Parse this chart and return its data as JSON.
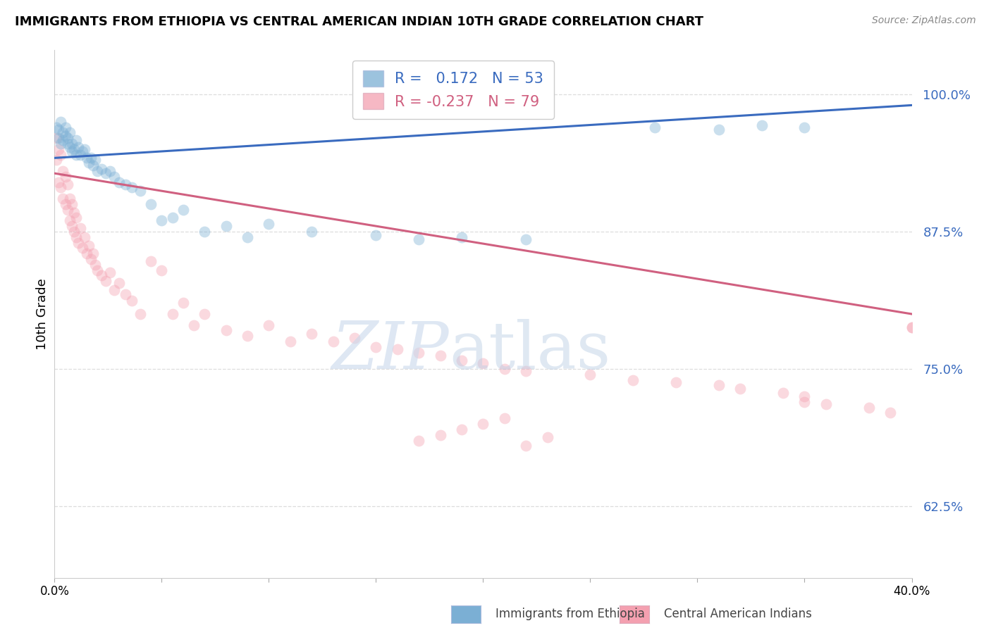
{
  "title": "IMMIGRANTS FROM ETHIOPIA VS CENTRAL AMERICAN INDIAN 10TH GRADE CORRELATION CHART",
  "source": "Source: ZipAtlas.com",
  "ylabel": "10th Grade",
  "ytick_labels": [
    "62.5%",
    "75.0%",
    "87.5%",
    "100.0%"
  ],
  "ytick_values": [
    0.625,
    0.75,
    0.875,
    1.0
  ],
  "xlim": [
    0.0,
    0.4
  ],
  "ylim": [
    0.56,
    1.04
  ],
  "legend_line1": "R =   0.172   N = 53",
  "legend_line2": "R = -0.237   N = 79",
  "blue_scatter_x": [
    0.001,
    0.002,
    0.002,
    0.003,
    0.003,
    0.004,
    0.004,
    0.005,
    0.005,
    0.006,
    0.006,
    0.007,
    0.007,
    0.008,
    0.008,
    0.009,
    0.01,
    0.01,
    0.011,
    0.012,
    0.013,
    0.014,
    0.015,
    0.016,
    0.017,
    0.018,
    0.019,
    0.02,
    0.022,
    0.024,
    0.026,
    0.028,
    0.03,
    0.033,
    0.036,
    0.04,
    0.045,
    0.05,
    0.055,
    0.06,
    0.07,
    0.08,
    0.09,
    0.1,
    0.12,
    0.15,
    0.17,
    0.19,
    0.22,
    0.28,
    0.31,
    0.33,
    0.35
  ],
  "blue_scatter_y": [
    0.97,
    0.968,
    0.96,
    0.975,
    0.955,
    0.965,
    0.958,
    0.97,
    0.962,
    0.955,
    0.96,
    0.965,
    0.952,
    0.955,
    0.948,
    0.95,
    0.958,
    0.945,
    0.952,
    0.945,
    0.948,
    0.95,
    0.942,
    0.938,
    0.942,
    0.935,
    0.94,
    0.93,
    0.932,
    0.928,
    0.93,
    0.925,
    0.92,
    0.918,
    0.915,
    0.912,
    0.9,
    0.885,
    0.888,
    0.895,
    0.875,
    0.88,
    0.87,
    0.882,
    0.875,
    0.872,
    0.868,
    0.87,
    0.868,
    0.97,
    0.968,
    0.972,
    0.97
  ],
  "pink_scatter_x": [
    0.001,
    0.001,
    0.002,
    0.002,
    0.003,
    0.003,
    0.004,
    0.004,
    0.005,
    0.005,
    0.006,
    0.006,
    0.007,
    0.007,
    0.008,
    0.008,
    0.009,
    0.009,
    0.01,
    0.01,
    0.011,
    0.012,
    0.013,
    0.014,
    0.015,
    0.016,
    0.017,
    0.018,
    0.019,
    0.02,
    0.022,
    0.024,
    0.026,
    0.028,
    0.03,
    0.033,
    0.036,
    0.04,
    0.045,
    0.05,
    0.055,
    0.06,
    0.065,
    0.07,
    0.08,
    0.09,
    0.1,
    0.11,
    0.12,
    0.13,
    0.14,
    0.15,
    0.16,
    0.17,
    0.18,
    0.19,
    0.2,
    0.21,
    0.22,
    0.25,
    0.27,
    0.29,
    0.31,
    0.32,
    0.34,
    0.35,
    0.36,
    0.38,
    0.39,
    0.4,
    0.17,
    0.18,
    0.19,
    0.2,
    0.21,
    0.22,
    0.23,
    0.35,
    0.4
  ],
  "pink_scatter_y": [
    0.96,
    0.94,
    0.95,
    0.92,
    0.945,
    0.915,
    0.93,
    0.905,
    0.925,
    0.9,
    0.918,
    0.895,
    0.905,
    0.885,
    0.9,
    0.88,
    0.892,
    0.875,
    0.888,
    0.87,
    0.865,
    0.878,
    0.86,
    0.87,
    0.855,
    0.862,
    0.85,
    0.855,
    0.845,
    0.84,
    0.835,
    0.83,
    0.838,
    0.822,
    0.828,
    0.818,
    0.812,
    0.8,
    0.848,
    0.84,
    0.8,
    0.81,
    0.79,
    0.8,
    0.785,
    0.78,
    0.79,
    0.775,
    0.782,
    0.775,
    0.778,
    0.77,
    0.768,
    0.765,
    0.762,
    0.758,
    0.755,
    0.75,
    0.748,
    0.745,
    0.74,
    0.738,
    0.735,
    0.732,
    0.728,
    0.725,
    0.718,
    0.715,
    0.71,
    0.788,
    0.685,
    0.69,
    0.695,
    0.7,
    0.705,
    0.68,
    0.688,
    0.72,
    0.788
  ],
  "blue_line_x": [
    0.0,
    0.4
  ],
  "blue_line_y": [
    0.942,
    0.99
  ],
  "pink_line_x": [
    0.0,
    0.4
  ],
  "pink_line_y": [
    0.928,
    0.8
  ],
  "watermark_zip": "ZIP",
  "watermark_atlas": "atlas",
  "scatter_size": 130,
  "scatter_alpha": 0.4,
  "blue_color": "#7bafd4",
  "pink_color": "#f4a0b0",
  "blue_line_color": "#3a6bbf",
  "pink_line_color": "#d06080",
  "grid_color": "#dddddd",
  "background_color": "#ffffff",
  "title_fontsize": 13,
  "source_fontsize": 10,
  "ytick_color": "#3a6bbf",
  "ytick_fontsize": 13
}
